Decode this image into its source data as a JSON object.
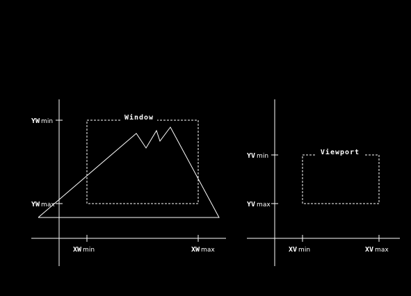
{
  "colors": {
    "background": "#000000",
    "line": "#ffffff"
  },
  "window_diagram": {
    "title": "Window",
    "labels": {
      "yw_min": {
        "main": "YW",
        "sub": "min"
      },
      "yw_max": {
        "main": "YW",
        "sub": "max"
      },
      "xw_min": {
        "main": "XW",
        "sub": "min"
      },
      "xw_max": {
        "main": "XW",
        "sub": "max"
      }
    }
  },
  "viewport_diagram": {
    "title": "Viewport",
    "labels": {
      "yv_min": {
        "main": "YV",
        "sub": "min"
      },
      "yv_max": {
        "main": "YV",
        "sub": "max"
      },
      "xv_min": {
        "main": "XV",
        "sub": "min"
      },
      "xv_max": {
        "main": "XV",
        "sub": "max"
      }
    }
  }
}
